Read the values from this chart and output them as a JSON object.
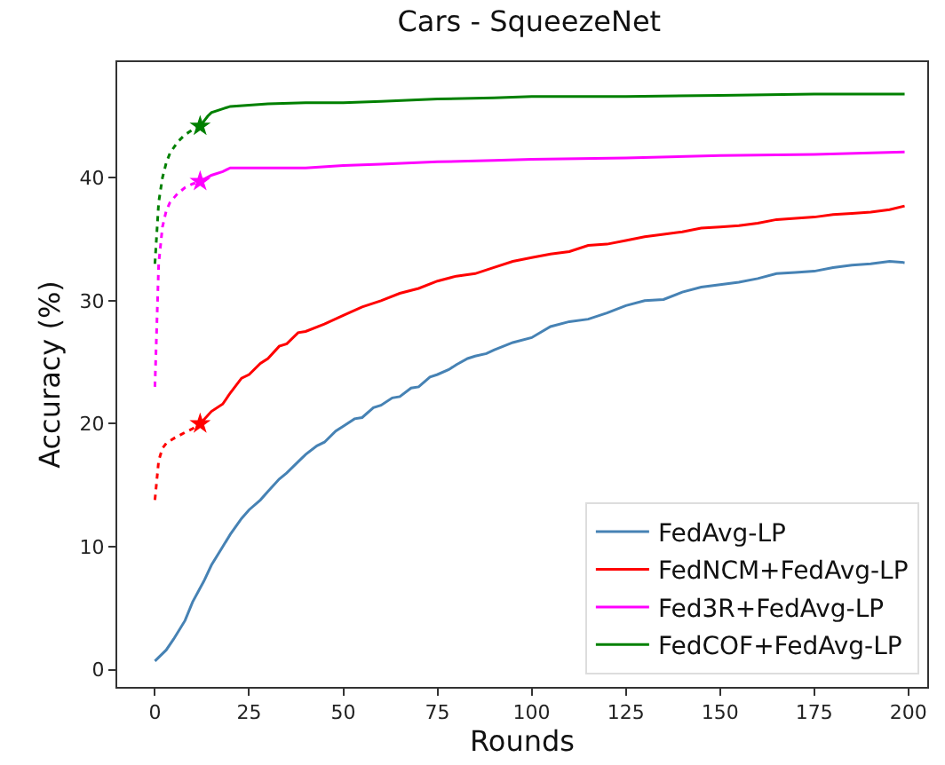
{
  "chart_data": {
    "type": "line",
    "title": "Cars - SqueezeNet",
    "xlabel": "Rounds",
    "ylabel": "Accuracy (%)",
    "xlim": [
      -10,
      205
    ],
    "xticks": [
      0,
      25,
      50,
      75,
      100,
      125,
      150,
      175,
      200
    ],
    "ylim": [
      -1.4,
      49.4
    ],
    "yticks": [
      0,
      10,
      20,
      30,
      40
    ],
    "grid": false,
    "legend": "bottom right",
    "marker": "none",
    "line_style": "solid",
    "series": [
      {
        "name": "FedAvg-LP",
        "color": "#4682b4",
        "x": [
          0,
          3,
          5,
          8,
          10,
          13,
          15,
          18,
          20,
          23,
          25,
          28,
          30,
          33,
          35,
          38,
          40,
          43,
          45,
          48,
          50,
          53,
          55,
          58,
          60,
          63,
          65,
          68,
          70,
          73,
          75,
          78,
          80,
          83,
          85,
          88,
          90,
          95,
          100,
          105,
          110,
          115,
          120,
          125,
          130,
          135,
          140,
          145,
          150,
          155,
          160,
          165,
          170,
          175,
          180,
          185,
          190,
          195,
          199
        ],
        "values": [
          0.7,
          1.6,
          2.5,
          4,
          5.5,
          7.2,
          8.5,
          10,
          11,
          12.3,
          13,
          13.8,
          14.5,
          15.5,
          16,
          16.9,
          17.5,
          18.2,
          18.5,
          19.4,
          19.8,
          20.4,
          20.5,
          21.3,
          21.5,
          22.1,
          22.2,
          22.9,
          23,
          23.8,
          24,
          24.4,
          24.8,
          25.3,
          25.5,
          25.7,
          26,
          26.6,
          27,
          27.9,
          28.3,
          28.5,
          29,
          29.6,
          30,
          30.1,
          30.7,
          31.1,
          31.3,
          31.5,
          31.8,
          32.2,
          32.3,
          32.4,
          32.7,
          32.9,
          33,
          33.2,
          33.1
        ]
      },
      {
        "name": "FedNCM+FedAvg-LP",
        "color": "#ff0000",
        "x": [
          12,
          15,
          18,
          20,
          23,
          25,
          28,
          30,
          33,
          35,
          38,
          40,
          45,
          50,
          55,
          60,
          65,
          70,
          75,
          80,
          85,
          90,
          95,
          100,
          105,
          110,
          115,
          120,
          125,
          130,
          135,
          140,
          145,
          150,
          155,
          160,
          165,
          170,
          175,
          180,
          185,
          190,
          195,
          199
        ],
        "values": [
          20,
          21,
          21.6,
          22.5,
          23.7,
          24,
          24.9,
          25.3,
          26.3,
          26.5,
          27.4,
          27.5,
          28.1,
          28.8,
          29.5,
          30,
          30.6,
          31,
          31.6,
          32,
          32.2,
          32.7,
          33.2,
          33.5,
          33.8,
          34,
          34.5,
          34.6,
          34.9,
          35.2,
          35.4,
          35.6,
          35.9,
          36,
          36.1,
          36.3,
          36.6,
          36.7,
          36.8,
          37,
          37.1,
          37.2,
          37.4,
          37.7
        ]
      },
      {
        "name": "Fed3R+FedAvg-LP",
        "color": "#ff00ff",
        "x": [
          12,
          15,
          18,
          20,
          25,
          30,
          40,
          50,
          60,
          75,
          90,
          100,
          125,
          150,
          175,
          199
        ],
        "values": [
          39.7,
          40.2,
          40.5,
          40.8,
          40.8,
          40.8,
          40.8,
          41,
          41.1,
          41.3,
          41.4,
          41.5,
          41.6,
          41.8,
          41.9,
          42.1
        ]
      },
      {
        "name": "FedCOF+FedAvg-LP",
        "color": "#008000",
        "x": [
          12,
          14,
          15,
          18,
          20,
          25,
          30,
          40,
          50,
          60,
          75,
          90,
          100,
          125,
          150,
          175,
          199
        ],
        "values": [
          44.2,
          45,
          45.3,
          45.6,
          45.8,
          45.9,
          46,
          46.1,
          46.1,
          46.2,
          46.4,
          46.5,
          46.6,
          46.6,
          46.7,
          46.8,
          46.8
        ]
      },
      {
        "color": "#ff0000",
        "line_style": "dotted",
        "x": [
          0,
          1,
          2,
          3,
          5,
          8,
          10,
          12
        ],
        "values": [
          13.8,
          17,
          18,
          18.4,
          18.8,
          19.3,
          19.6,
          20
        ]
      },
      {
        "color": "#ff00ff",
        "line_style": "dotted",
        "x": [
          0,
          1,
          2,
          3,
          4,
          6,
          8,
          10,
          12
        ],
        "values": [
          23,
          33,
          36,
          37.3,
          38,
          38.7,
          39.2,
          39.5,
          39.7
        ]
      },
      {
        "color": "#008000",
        "line_style": "dotted",
        "x": [
          0,
          1,
          2,
          3,
          4,
          6,
          8,
          10,
          12
        ],
        "values": [
          33,
          38,
          40,
          41.2,
          42,
          42.9,
          43.5,
          43.9,
          44.2
        ]
      },
      {
        "type": "scatter",
        "marker": "star",
        "x": [
          12,
          12,
          12
        ],
        "values": [
          20,
          39.7,
          44.2
        ],
        "colors": [
          "#ff0000",
          "#ff00ff",
          "#008000"
        ]
      }
    ]
  }
}
